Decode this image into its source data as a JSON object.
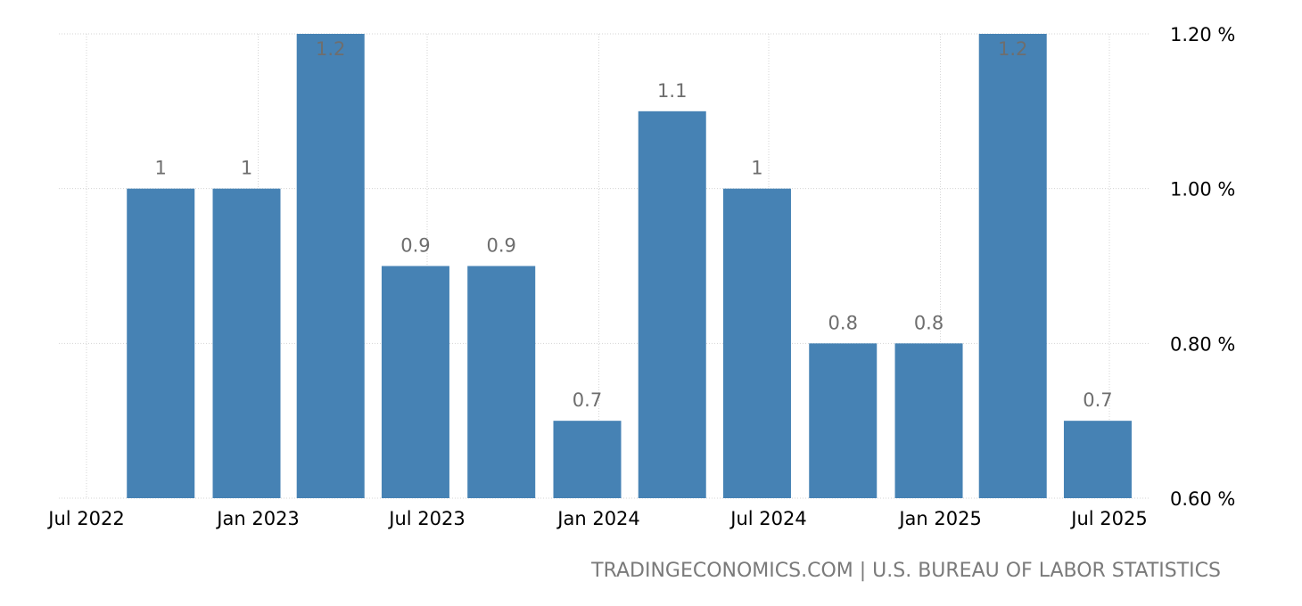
{
  "source": "TRADINGECONOMICS.COM | U.S. BUREAU OF LABOR STATISTICS",
  "chart_data": {
    "type": "bar",
    "title": "",
    "xlabel": "",
    "ylabel": "",
    "x": [
      "2022-09-30",
      "2022-12-31",
      "2023-03-31",
      "2023-06-30",
      "2023-09-30",
      "2023-12-31",
      "2024-03-31",
      "2024-06-30",
      "2024-09-30",
      "2024-12-31",
      "2025-03-31",
      "2025-06-30"
    ],
    "values": [
      1,
      1,
      1.2,
      0.9,
      0.9,
      0.7,
      1.1,
      1,
      0.8,
      0.8,
      1.2,
      0.7
    ],
    "value_labels": [
      "1",
      "1",
      "1.2",
      "0.9",
      "0.9",
      "0.7",
      "1.1",
      "1",
      "0.8",
      "0.8",
      "1.2",
      "0.7"
    ],
    "x_ticks": [
      {
        "date": "2022-07-01",
        "label": "Jul 2022"
      },
      {
        "date": "2023-01-01",
        "label": "Jan 2023"
      },
      {
        "date": "2023-07-01",
        "label": "Jul 2023"
      },
      {
        "date": "2024-01-01",
        "label": "Jan 2024"
      },
      {
        "date": "2024-07-01",
        "label": "Jul 2024"
      },
      {
        "date": "2025-01-01",
        "label": "Jan 2025"
      },
      {
        "date": "2025-07-01",
        "label": "Jul 2025"
      }
    ],
    "y_ticks": [
      {
        "value": 0.6,
        "label": "0.60 %"
      },
      {
        "value": 0.8,
        "label": "0.80 %"
      },
      {
        "value": 1.0,
        "label": "1.00 %"
      },
      {
        "value": 1.2,
        "label": "1.20 %"
      }
    ],
    "ylim": [
      0.6,
      1.2
    ],
    "grid": true,
    "y_axis_position": "right",
    "bar_color": "#4682b4",
    "label_color": "#6e6e6e"
  }
}
